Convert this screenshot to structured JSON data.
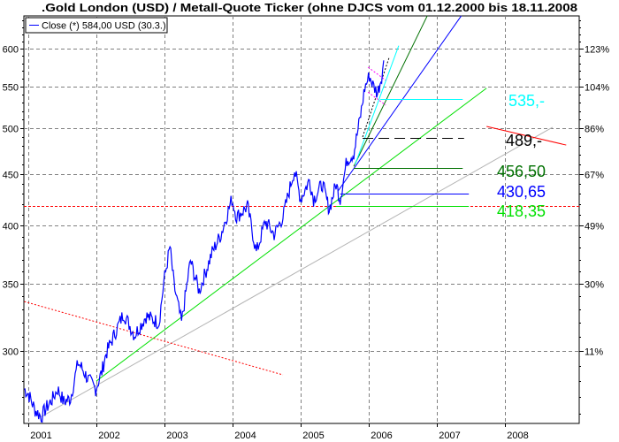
{
  "chart_data": {
    "type": "line",
    "title": ".Gold London (USD) / Metall-Quote Ticker (ohne DJCS vom 01.12.2000 bis 18.11.2008",
    "legend": {
      "label": "Close (*) 584,00 USD (30.3.)",
      "placement": "top-left",
      "color": "#0000ff"
    },
    "xlim": [
      2000.93,
      2009.07
    ],
    "ylim_log": [
      240,
      660
    ],
    "x_ticks": [
      "2001",
      "2002",
      "2003",
      "2004",
      "2005",
      "2006",
      "2007",
      "2008"
    ],
    "y_ticks_left": [
      600,
      550,
      500,
      450,
      400,
      350,
      300
    ],
    "y_ticks_right": [
      {
        "price": 600,
        "label": "123%"
      },
      {
        "price": 550,
        "label": "104%"
      },
      {
        "price": 500,
        "label": "86%"
      },
      {
        "price": 450,
        "label": "67%"
      },
      {
        "price": 400,
        "label": "49%"
      },
      {
        "price": 350,
        "label": "30%"
      },
      {
        "price": 300,
        "label": "11%"
      }
    ],
    "series": [
      {
        "name": "Close",
        "color": "#0000ff",
        "points": [
          [
            2000.94,
            275
          ],
          [
            2001.0,
            272
          ],
          [
            2001.1,
            262
          ],
          [
            2001.19,
            258
          ],
          [
            2001.26,
            263
          ],
          [
            2001.36,
            269
          ],
          [
            2001.43,
            275
          ],
          [
            2001.52,
            267
          ],
          [
            2001.62,
            269
          ],
          [
            2001.73,
            292
          ],
          [
            2001.78,
            289
          ],
          [
            2001.88,
            281
          ],
          [
            2001.99,
            275
          ],
          [
            2002.08,
            286
          ],
          [
            2002.14,
            298
          ],
          [
            2002.4,
            327
          ],
          [
            2002.56,
            311
          ],
          [
            2002.73,
            325
          ],
          [
            2002.92,
            320
          ],
          [
            2002.99,
            351
          ],
          [
            2003.08,
            381
          ],
          [
            2003.14,
            349
          ],
          [
            2003.25,
            320
          ],
          [
            2003.38,
            369
          ],
          [
            2003.51,
            344
          ],
          [
            2003.7,
            376
          ],
          [
            2003.83,
            392
          ],
          [
            2003.99,
            425
          ],
          [
            2004.06,
            408
          ],
          [
            2004.22,
            418
          ],
          [
            2004.35,
            376
          ],
          [
            2004.48,
            404
          ],
          [
            2004.61,
            392
          ],
          [
            2004.74,
            408
          ],
          [
            2004.87,
            444
          ],
          [
            2004.91,
            454
          ],
          [
            2005.0,
            425
          ],
          [
            2005.13,
            444
          ],
          [
            2005.19,
            425
          ],
          [
            2005.32,
            440
          ],
          [
            2005.42,
            415
          ],
          [
            2005.52,
            440
          ],
          [
            2005.58,
            425
          ],
          [
            2005.68,
            465
          ],
          [
            2005.78,
            472
          ],
          [
            2005.88,
            515
          ],
          [
            2005.94,
            548
          ],
          [
            2006.01,
            564
          ],
          [
            2006.06,
            552
          ],
          [
            2006.13,
            542
          ],
          [
            2006.19,
            564
          ],
          [
            2006.22,
            584
          ]
        ]
      }
    ],
    "trend_lines": [
      {
        "name": "gray-trend",
        "color": "#b4b4b4",
        "from": [
          2001.19,
          258
        ],
        "to": [
          2008.7,
          501
        ]
      },
      {
        "name": "light-green-trend",
        "color": "#00e000",
        "from": [
          2002.0,
          280
        ],
        "to": [
          2007.73,
          548
        ]
      },
      {
        "name": "blue-trend",
        "color": "#0000ff",
        "from": [
          2005.55,
          433
        ],
        "to": [
          2007.36,
          647
        ]
      },
      {
        "name": "dark-green-trend",
        "color": "#007000",
        "from": [
          2005.78,
          458
        ],
        "to": [
          2006.86,
          647
        ]
      },
      {
        "name": "cyan-trend",
        "color": "#00ffff",
        "from": [
          2005.8,
          460
        ],
        "to": [
          2006.44,
          604
        ]
      },
      {
        "name": "red-trend",
        "color": "#ff0000",
        "from": [
          2007.73,
          502
        ],
        "to": [
          2008.9,
          481
        ]
      }
    ],
    "dotted_lines": [
      {
        "name": "red-dotted-trend",
        "color": "#ff0000",
        "from": [
          2000.94,
          336
        ],
        "to": [
          2004.74,
          284
        ]
      },
      {
        "name": "black-dotted-trend",
        "color": "#000000",
        "from": [
          2005.91,
          490
        ],
        "to": [
          2006.3,
          588
        ]
      },
      {
        "name": "magenta-channel-upper",
        "color": "#ff00ff",
        "from": [
          2005.99,
          575
        ],
        "to": [
          2006.25,
          558
        ]
      },
      {
        "name": "magenta-channel-lower",
        "color": "#ff00ff",
        "from": [
          2005.99,
          543
        ],
        "to": [
          2006.25,
          527
        ]
      }
    ],
    "levels": [
      {
        "name": "cyan-level",
        "value": 535,
        "label": "535,-",
        "color": "#00ffff",
        "from": 2006.17,
        "to": 2007.38,
        "dash": false
      },
      {
        "name": "black-level",
        "value": 489,
        "label": "489,-",
        "color": "#000000",
        "from": 2005.91,
        "to": 2007.4,
        "dash": true
      },
      {
        "name": "dark-green-level",
        "value": 456.5,
        "label": "456,50",
        "color": "#007000",
        "from": 2005.78,
        "to": 2007.38,
        "dash": false
      },
      {
        "name": "blue-level",
        "value": 430.65,
        "label": "430,65",
        "color": "#0000ff",
        "from": 2005.58,
        "to": 2007.47,
        "dash": false
      },
      {
        "name": "green-level",
        "value": 418.35,
        "label": "418,35",
        "color": "#00e000",
        "from": 2005.52,
        "to": 2007.47,
        "dash": false
      }
    ],
    "support_line": {
      "value": 418.35,
      "color": "#ff0000"
    },
    "grid": true
  }
}
